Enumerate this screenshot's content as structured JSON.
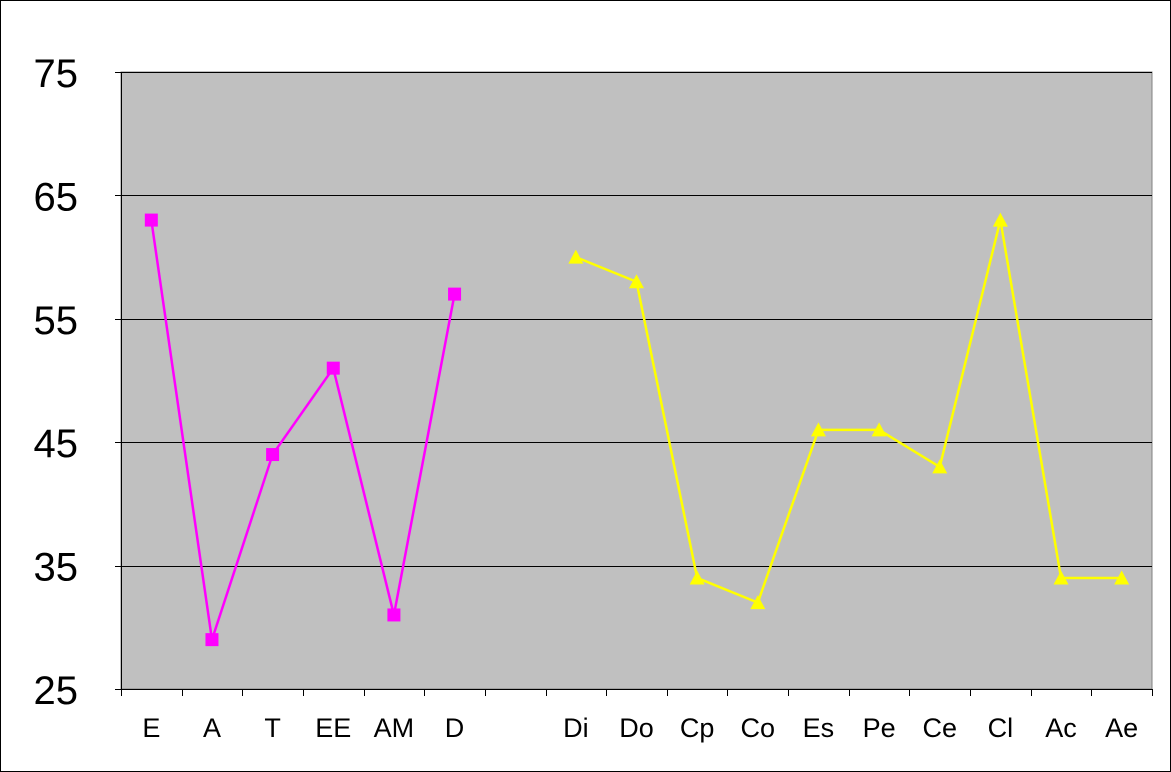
{
  "chart_data": {
    "type": "line",
    "title": "",
    "xlabel": "",
    "ylabel": "",
    "ylim": [
      25,
      75
    ],
    "yticks": [
      25,
      35,
      45,
      55,
      65,
      75
    ],
    "grid": true,
    "legend": "none",
    "plot_background": "#C0C0C0",
    "categories": [
      "E",
      "A",
      "T",
      "EE",
      "AM",
      "D",
      "",
      "Di",
      "Do",
      "Cp",
      "Co",
      "Es",
      "Pe",
      "Ce",
      "Cl",
      "Ac",
      "Ae"
    ],
    "series": [
      {
        "color": "#FF00FF",
        "marker": "square",
        "points": [
          {
            "x": "E",
            "y": 63
          },
          {
            "x": "A",
            "y": 29
          },
          {
            "x": "T",
            "y": 44
          },
          {
            "x": "EE",
            "y": 51
          },
          {
            "x": "AM",
            "y": 31
          },
          {
            "x": "D",
            "y": 57
          }
        ]
      },
      {
        "color": "#FFFF00",
        "marker": "triangle",
        "points": [
          {
            "x": "Di",
            "y": 60
          },
          {
            "x": "Do",
            "y": 58
          },
          {
            "x": "Cp",
            "y": 34
          },
          {
            "x": "Co",
            "y": 32
          },
          {
            "x": "Es",
            "y": 46
          },
          {
            "x": "Pe",
            "y": 46
          },
          {
            "x": "Ce",
            "y": 43
          },
          {
            "x": "Cl",
            "y": 63
          },
          {
            "x": "Ac",
            "y": 34
          },
          {
            "x": "Ae",
            "y": 34
          }
        ]
      }
    ]
  }
}
